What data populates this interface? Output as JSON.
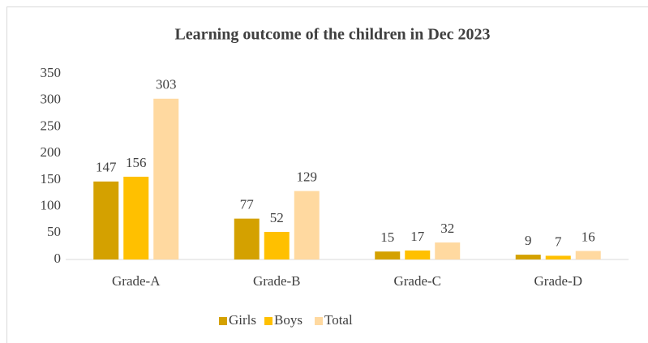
{
  "chart_data": {
    "type": "bar",
    "title": "Learning outcome of the children in Dec 2023",
    "categories": [
      "Grade-A",
      "Grade-B",
      "Grade-C",
      "Grade-D"
    ],
    "series": [
      {
        "name": "Girls",
        "color": "#d4a100",
        "values": [
          147,
          77,
          15,
          9
        ]
      },
      {
        "name": "Boys",
        "color": "#ffc000",
        "values": [
          156,
          52,
          17,
          7
        ]
      },
      {
        "name": "Total",
        "color": "#ffd9a0",
        "values": [
          303,
          129,
          32,
          16
        ]
      }
    ],
    "ylim": [
      0,
      350
    ],
    "yticks": [
      0,
      50,
      100,
      150,
      200,
      250,
      300,
      350
    ],
    "grid": false,
    "legend": "bottom"
  }
}
